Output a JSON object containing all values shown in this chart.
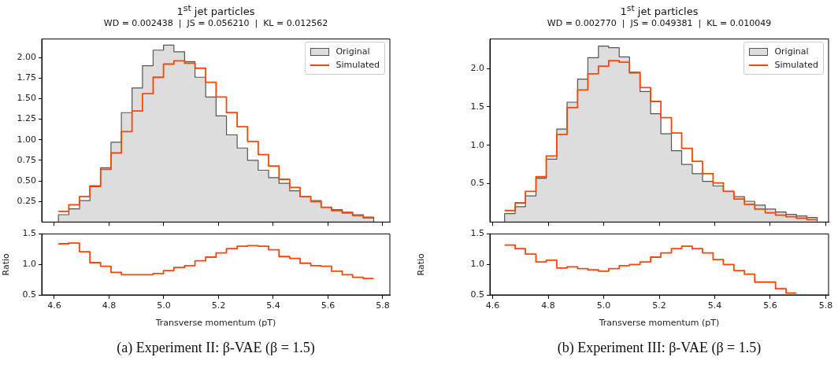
{
  "chart_data": [
    {
      "type": "histogram",
      "title": "1$^{st}$ jet particles",
      "subtitle": "WD = 0.002438  |  JS = 0.056210  |  KL = 0.012562",
      "bins": [
        4.615,
        4.653,
        4.692,
        4.73,
        4.769,
        4.807,
        4.845,
        4.884,
        4.922,
        4.961,
        4.999,
        5.037,
        5.076,
        5.114,
        5.153,
        5.191,
        5.229,
        5.268,
        5.306,
        5.345,
        5.383,
        5.421,
        5.46,
        5.498,
        5.537,
        5.575,
        5.613,
        5.652,
        5.69,
        5.729,
        5.767
      ],
      "series": [
        {
          "name": "Original",
          "color": "#dddddd",
          "values": [
            0.09,
            0.16,
            0.26,
            0.43,
            0.66,
            0.97,
            1.33,
            1.63,
            1.9,
            2.09,
            2.15,
            2.07,
            1.95,
            1.76,
            1.52,
            1.29,
            1.06,
            0.9,
            0.75,
            0.63,
            0.54,
            0.47,
            0.38,
            0.31,
            0.26,
            0.18,
            0.15,
            0.12,
            0.09,
            0.06
          ]
        },
        {
          "name": "Simulated",
          "type": "step",
          "color": "#ff4500",
          "x": [
            4.615,
            4.653,
            4.692,
            4.73,
            4.769,
            4.807,
            4.845,
            4.884,
            4.922,
            4.961,
            4.999,
            5.037,
            5.076,
            5.114,
            5.153,
            5.191,
            5.229,
            5.268,
            5.306,
            5.345,
            5.383,
            5.421,
            5.46,
            5.498,
            5.537,
            5.575,
            5.613,
            5.652,
            5.69,
            5.729,
            5.767
          ],
          "values": [
            0.13,
            0.21,
            0.31,
            0.44,
            0.64,
            0.84,
            1.1,
            1.35,
            1.56,
            1.76,
            1.92,
            1.96,
            1.93,
            1.87,
            1.7,
            1.52,
            1.33,
            1.16,
            0.98,
            0.82,
            0.68,
            0.52,
            0.42,
            0.31,
            0.25,
            0.18,
            0.14,
            0.11,
            0.08,
            0.05,
            0.05
          ]
        }
      ],
      "xlim": [
        4.554,
        5.826
      ],
      "xticks": [
        4.6,
        4.8,
        5,
        5.2,
        5.4,
        5.6,
        5.8
      ],
      "ylim": [
        0,
        2.225
      ],
      "yticks": [
        0.25,
        {
          "value": 0.5,
          "label": "0.50"
        },
        0.75,
        {
          "value": 1,
          "label": "1.00"
        },
        1.25,
        {
          "value": 1.5,
          "label": "1.50"
        },
        1.75,
        {
          "value": 2,
          "label": "2.00"
        }
      ],
      "tick_labels": "y",
      "legend": "top right"
    },
    {
      "type": "step",
      "xlabel": "Transverse momentum (pT)",
      "ylabel": "Ratio",
      "x": [
        4.615,
        4.653,
        4.692,
        4.73,
        4.769,
        4.807,
        4.845,
        4.884,
        4.922,
        4.961,
        4.999,
        5.037,
        5.076,
        5.114,
        5.153,
        5.191,
        5.229,
        5.268,
        5.306,
        5.345,
        5.383,
        5.421,
        5.46,
        5.498,
        5.537,
        5.575,
        5.613,
        5.652,
        5.69,
        5.729,
        5.767
      ],
      "color": "#ff4500",
      "values": [
        1.34,
        1.35,
        1.21,
        1.03,
        0.97,
        0.87,
        0.83,
        0.83,
        0.83,
        0.85,
        0.9,
        0.95,
        0.98,
        1.06,
        1.12,
        1.19,
        1.26,
        1.3,
        1.31,
        1.3,
        1.24,
        1.13,
        1.1,
        1.02,
        0.98,
        0.97,
        0.89,
        0.83,
        0.79,
        0.77,
        0.77
      ],
      "xlim": [
        4.554,
        5.826
      ],
      "xticks": [
        4.6,
        4.8,
        {
          "value": 5,
          "label": "5.0"
        },
        5.2,
        5.4,
        5.6,
        5.8
      ],
      "ylim": [
        0.5,
        1.5
      ],
      "yticks": [
        0.5,
        {
          "value": 1,
          "label": "1.0"
        },
        1.5
      ],
      "annotations": [
        "(a) Experiment II: β-VAE (β = 1.5)"
      ]
    },
    {
      "type": "histogram",
      "title": "1$^{st}$ jet particles",
      "subtitle": "WD = 0.002770  |  JS = 0.049381  |  KL = 0.010049",
      "bins": [
        4.643,
        4.681,
        4.718,
        4.756,
        4.793,
        4.831,
        4.868,
        4.906,
        4.943,
        4.981,
        5.018,
        5.056,
        5.093,
        5.131,
        5.169,
        5.206,
        5.244,
        5.281,
        5.319,
        5.356,
        5.394,
        5.431,
        5.469,
        5.507,
        5.544,
        5.582,
        5.619,
        5.657,
        5.694,
        5.732,
        5.769
      ],
      "series": [
        {
          "name": "Original",
          "color": "#dddddd",
          "values": [
            0.11,
            0.2,
            0.34,
            0.57,
            0.82,
            1.21,
            1.56,
            1.86,
            2.14,
            2.29,
            2.27,
            2.15,
            1.94,
            1.7,
            1.41,
            1.15,
            0.93,
            0.75,
            0.63,
            0.53,
            0.47,
            0.4,
            0.33,
            0.27,
            0.22,
            0.17,
            0.13,
            0.1,
            0.08,
            0.06
          ]
        },
        {
          "name": "Simulated",
          "type": "step",
          "color": "#ff4500",
          "x": [
            4.643,
            4.681,
            4.718,
            4.756,
            4.793,
            4.831,
            4.868,
            4.906,
            4.943,
            4.981,
            5.018,
            5.056,
            5.093,
            5.131,
            5.169,
            5.206,
            5.244,
            5.281,
            5.319,
            5.356,
            5.394,
            5.431,
            5.469,
            5.507,
            5.544,
            5.582,
            5.619,
            5.657,
            5.694,
            5.732,
            5.769
          ],
          "values": [
            0.15,
            0.25,
            0.4,
            0.59,
            0.86,
            1.14,
            1.49,
            1.72,
            1.93,
            2.03,
            2.1,
            2.08,
            1.95,
            1.75,
            1.57,
            1.36,
            1.16,
            0.96,
            0.79,
            0.63,
            0.51,
            0.4,
            0.3,
            0.23,
            0.17,
            0.12,
            0.09,
            0.07,
            0.05,
            0.03,
            0.03
          ]
        }
      ],
      "xlim": [
        4.59,
        5.81
      ],
      "xticks": [
        4.6,
        4.8,
        5,
        5.2,
        5.4,
        5.6,
        5.8
      ],
      "ylim": [
        0,
        2.383
      ],
      "yticks": [
        0.5,
        {
          "value": 1,
          "label": "1.0"
        },
        1.5,
        {
          "value": 2,
          "label": "2.0"
        }
      ],
      "tick_labels": "y",
      "legend": "top right"
    },
    {
      "type": "step",
      "xlabel": "Transverse momentum (pT)",
      "ylabel": "Ratio",
      "x": [
        4.643,
        4.681,
        4.718,
        4.756,
        4.793,
        4.831,
        4.868,
        4.906,
        4.943,
        4.981,
        5.018,
        5.056,
        5.093,
        5.131,
        5.169,
        5.206,
        5.244,
        5.281,
        5.319,
        5.356,
        5.394,
        5.431,
        5.469,
        5.507,
        5.544,
        5.582,
        5.619,
        5.657,
        5.694
      ],
      "color": "#ff4500",
      "values": [
        1.32,
        1.26,
        1.17,
        1.04,
        1.07,
        0.94,
        0.96,
        0.93,
        0.91,
        0.89,
        0.93,
        0.98,
        1.0,
        1.04,
        1.12,
        1.19,
        1.26,
        1.3,
        1.26,
        1.19,
        1.08,
        1.0,
        0.9,
        0.84,
        0.71,
        0.71,
        0.6,
        0.53,
        0.53
      ],
      "xlim": [
        4.59,
        5.81
      ],
      "xticks": [
        4.6,
        4.8,
        {
          "value": 5,
          "label": "5.0"
        },
        5.2,
        5.4,
        5.6,
        5.8
      ],
      "ylim": [
        0.5,
        1.5
      ],
      "yticks": [
        0.5,
        {
          "value": 1,
          "label": "1.0"
        },
        1.5
      ],
      "annotations": [
        "(b) Experiment III: β-VAE (β = 1.5)"
      ]
    }
  ]
}
